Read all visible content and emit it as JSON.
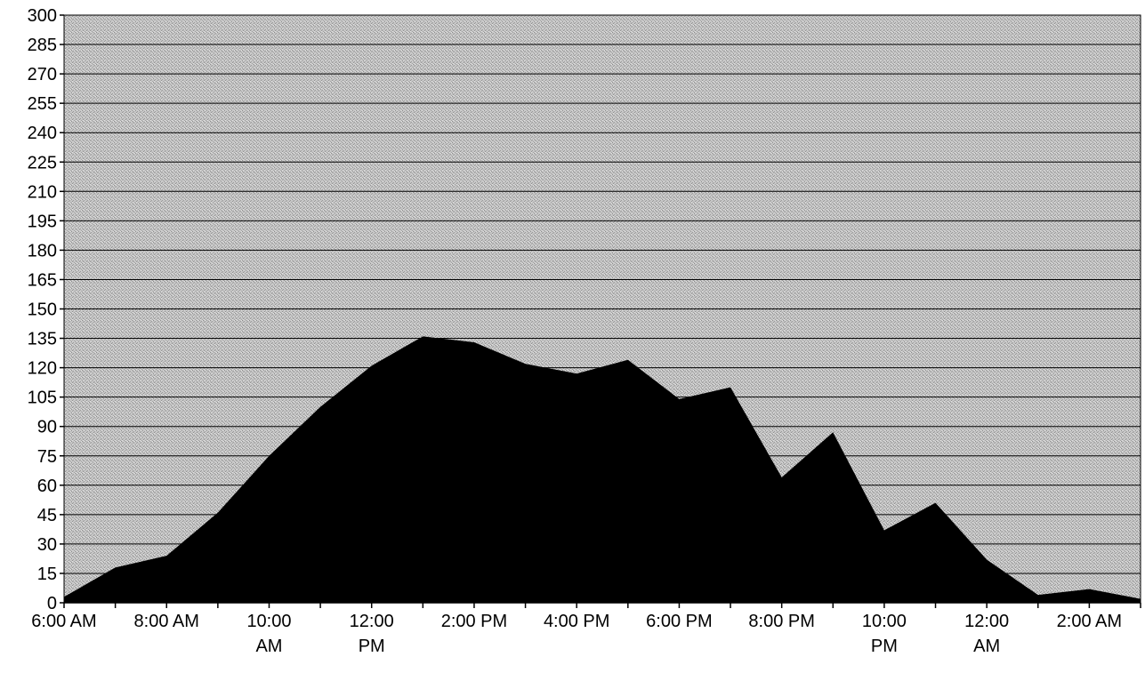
{
  "chart_data": {
    "type": "area",
    "title": "",
    "xlabel": "",
    "ylabel": "",
    "ylim": [
      0,
      300
    ],
    "y_ticks": [
      0,
      15,
      30,
      45,
      60,
      75,
      90,
      105,
      120,
      135,
      150,
      165,
      180,
      195,
      210,
      225,
      240,
      255,
      270,
      285,
      300
    ],
    "grid": true,
    "legend": "none",
    "x": [
      "6:00 AM",
      "7:00 AM",
      "8:00 AM",
      "9:00 AM",
      "10:00 AM",
      "11:00 AM",
      "12:00 PM",
      "1:00 PM",
      "2:00 PM",
      "3:00 PM",
      "4:00 PM",
      "5:00 PM",
      "6:00 PM",
      "7:00 PM",
      "8:00 PM",
      "9:00 PM",
      "10:00 PM",
      "11:00 PM",
      "12:00 AM",
      "1:00 AM",
      "2:00 AM",
      "3:00 AM"
    ],
    "x_tick_labels": [
      [
        "6:00 AM"
      ],
      [
        "8:00 AM"
      ],
      [
        "10:00",
        "AM"
      ],
      [
        "12:00",
        "PM"
      ],
      [
        "2:00 PM"
      ],
      [
        "4:00 PM"
      ],
      [
        "6:00 PM"
      ],
      [
        "8:00 PM"
      ],
      [
        "10:00",
        "PM"
      ],
      [
        "12:00",
        "AM"
      ],
      [
        "2:00 AM"
      ]
    ],
    "series": [
      {
        "values": [
          3,
          18,
          24,
          46,
          75,
          100,
          121,
          136,
          133,
          122,
          117,
          124,
          104,
          110,
          64,
          87,
          37,
          51,
          22,
          4,
          7,
          2
        ]
      }
    ],
    "colors": {
      "fill": "#000000",
      "plot_background": "#c2c2c2",
      "gridline": "#000000"
    }
  }
}
